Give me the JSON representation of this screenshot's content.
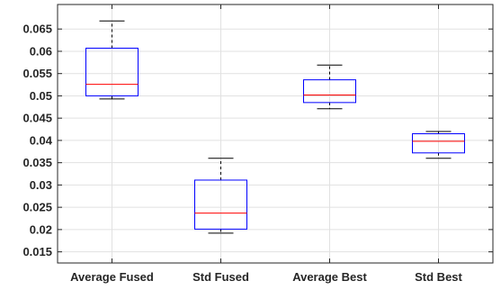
{
  "chart_data": {
    "type": "boxplot",
    "title": "",
    "xlabel": "",
    "ylabel": "",
    "ylim": [
      0.0125,
      0.0705
    ],
    "yticks": [
      0.015,
      0.02,
      0.025,
      0.03,
      0.035,
      0.04,
      0.045,
      0.05,
      0.055,
      0.06,
      0.065
    ],
    "ytick_labels": [
      "0.015",
      "0.02",
      "0.025",
      "0.03",
      "0.035",
      "0.04",
      "0.045",
      "0.05",
      "0.055",
      "0.06",
      "0.065"
    ],
    "grid": true,
    "categories": [
      "Average Fused",
      "Std Fused",
      "Average Best",
      "Std Best"
    ],
    "boxes": [
      {
        "whisker_low": 0.0493,
        "q1": 0.05,
        "median": 0.0526,
        "q3": 0.0607,
        "whisker_high": 0.0668
      },
      {
        "whisker_low": 0.0192,
        "q1": 0.0201,
        "median": 0.0237,
        "q3": 0.0311,
        "whisker_high": 0.036
      },
      {
        "whisker_low": 0.0471,
        "q1": 0.0485,
        "median": 0.0502,
        "q3": 0.0536,
        "whisker_high": 0.0569
      },
      {
        "whisker_low": 0.036,
        "q1": 0.0372,
        "median": 0.0398,
        "q3": 0.0415,
        "whisker_high": 0.042
      }
    ],
    "colors": {
      "box": "#0000ff",
      "median": "#ff0000",
      "whisker": "#000000",
      "grid": "#e1e1e1",
      "axis": "#262626"
    }
  }
}
